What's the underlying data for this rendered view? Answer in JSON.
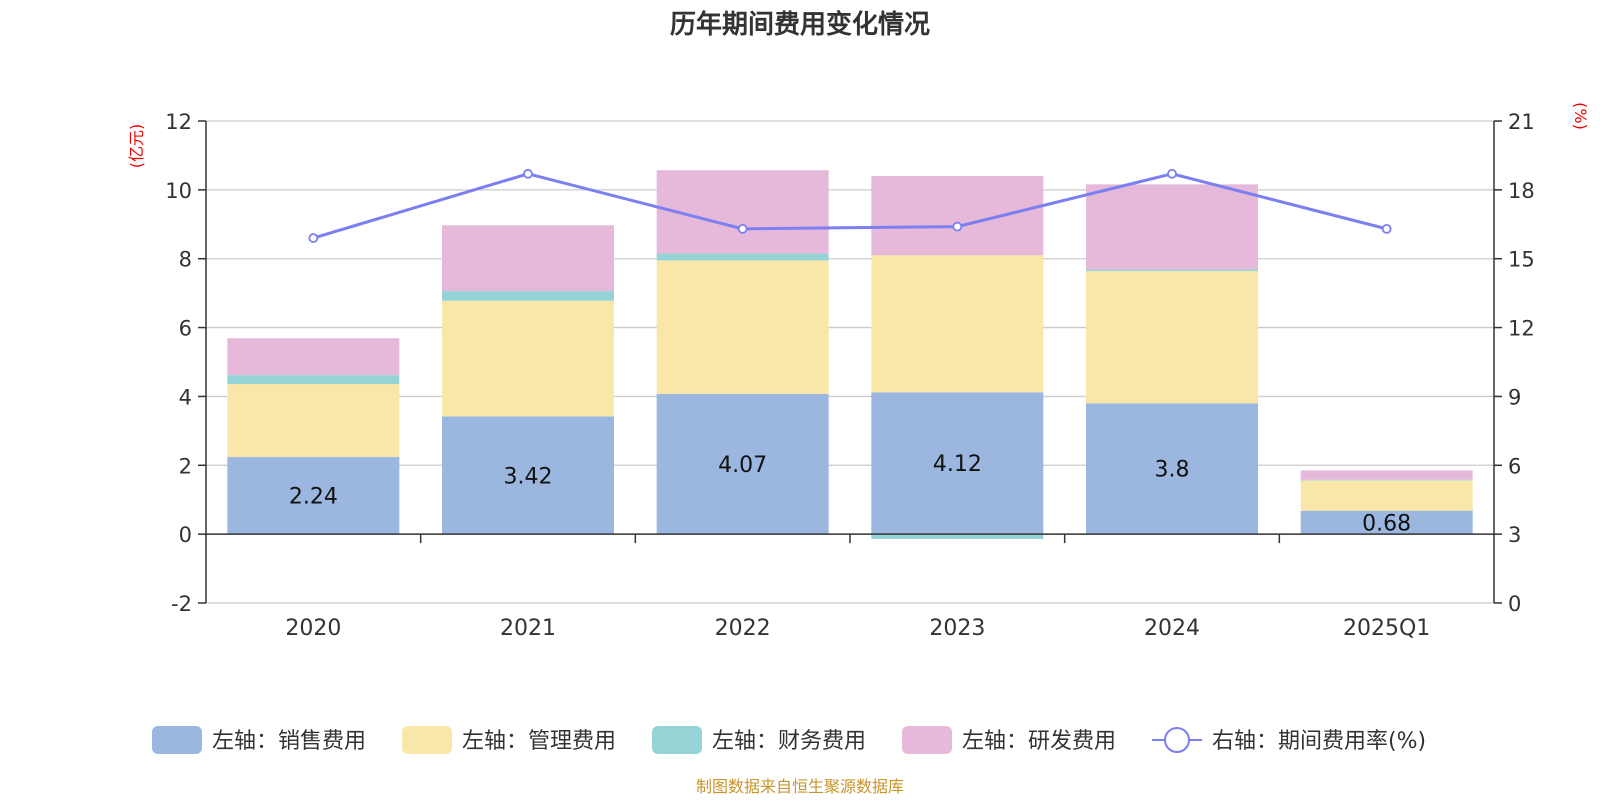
{
  "chart_data": {
    "type": "bar",
    "title": "历年期间费用变化情况",
    "categories": [
      "2020",
      "2021",
      "2022",
      "2023",
      "2024",
      "2025Q1"
    ],
    "left_axis": {
      "unit": "(亿元)",
      "ylim": [
        -2,
        12
      ],
      "ticks": [
        "-2",
        "0",
        "2",
        "4",
        "6",
        "8",
        "10",
        "12"
      ]
    },
    "right_axis": {
      "unit": "(%)",
      "ylim": [
        0,
        21
      ],
      "ticks": [
        "0",
        "3",
        "6",
        "9",
        "12",
        "15",
        "18",
        "21"
      ]
    },
    "series": [
      {
        "name": "左轴：销售费用",
        "axis": "left",
        "kind": "bar",
        "color": "#9bb7e0",
        "values": [
          2.24,
          3.42,
          4.07,
          4.12,
          3.8,
          0.68
        ],
        "labels": [
          "2.24",
          "3.42",
          "4.07",
          "4.12",
          "3.8",
          "0.68"
        ]
      },
      {
        "name": "左轴：管理费用",
        "axis": "left",
        "kind": "bar",
        "color": "#f8e7a8",
        "values": [
          2.12,
          3.36,
          3.88,
          3.98,
          3.84,
          0.88
        ]
      },
      {
        "name": "左轴：财务费用",
        "axis": "left",
        "kind": "bar",
        "color": "#95d4d6",
        "values": [
          0.26,
          0.28,
          0.2,
          -0.14,
          0.05,
          0.02
        ]
      },
      {
        "name": "左轴：研发费用",
        "axis": "left",
        "kind": "bar",
        "color": "#e6b9da",
        "values": [
          1.07,
          1.91,
          2.42,
          2.3,
          2.47,
          0.27
        ]
      },
      {
        "name": "右轴：期间费用率(%)",
        "axis": "right",
        "kind": "line",
        "color": "#7b7ff0",
        "values": [
          15.9,
          18.7,
          16.3,
          16.4,
          18.7,
          16.3
        ]
      }
    ],
    "legend_position": "bottom",
    "grid": true
  },
  "footer": {
    "source": "制图数据来自恒生聚源数据库"
  }
}
